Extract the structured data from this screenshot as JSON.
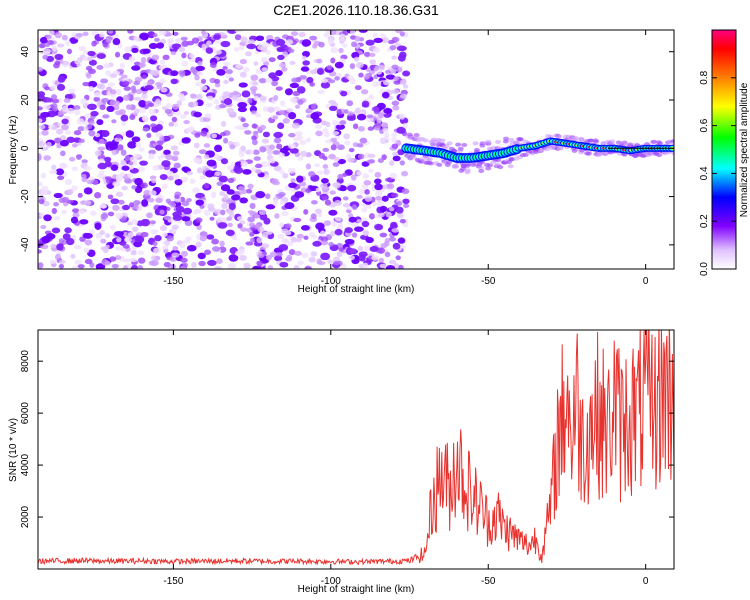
{
  "title": "C2E1.2026.110.18.36.G31",
  "chart_data": [
    {
      "type": "heatmap",
      "name": "spectrogram",
      "xlabel": "Height of straight line (km)",
      "ylabel": "Frequency (Hz)",
      "xlim": [
        -193,
        9
      ],
      "ylim": [
        -50,
        49
      ],
      "xticks": [
        -150,
        -100,
        -50,
        0
      ],
      "yticks": [
        -40,
        -20,
        0,
        20,
        40
      ],
      "noise_region_x": [
        -193,
        -76
      ],
      "signal_start_x": -76,
      "signal_ridge": {
        "x": [
          -76,
          -70,
          -65,
          -60,
          -55,
          -50,
          -45,
          -40,
          -35,
          -30,
          -25,
          -20,
          -15,
          -10,
          -5,
          0,
          5,
          9
        ],
        "y": [
          0,
          -1,
          -2,
          -4,
          -4,
          -3,
          -2,
          0,
          1,
          3,
          2,
          1,
          0,
          0,
          -1,
          0,
          0,
          0
        ]
      },
      "colorbar": {
        "label": "Normalized spectral amplitude",
        "range": [
          0,
          1
        ],
        "ticks": [
          "0.0",
          "0.2",
          "0.4",
          "0.6",
          "0.8"
        ],
        "colors": [
          "#ffffff",
          "#8000ff",
          "#0000ff",
          "#00ffff",
          "#00ff00",
          "#ffff00",
          "#ff8000",
          "#ff0000",
          "#ff0080"
        ]
      }
    },
    {
      "type": "line",
      "name": "snr",
      "xlabel": "Height of straight line (km)",
      "ylabel": "SNR (10 * v/v)",
      "color": "#e8322e",
      "xlim": [
        -193,
        9
      ],
      "ylim": [
        0,
        9200
      ],
      "xticks": [
        -150,
        -100,
        -50,
        0
      ],
      "yticks": [
        2000,
        4000,
        6000,
        8000
      ],
      "series": [
        {
          "name": "SNR",
          "x": [
            -193,
            -180,
            -170,
            -160,
            -150,
            -140,
            -130,
            -120,
            -110,
            -100,
            -90,
            -80,
            -75,
            -70,
            -68,
            -65,
            -62,
            -60,
            -58,
            -55,
            -52,
            -50,
            -47,
            -45,
            -42,
            -40,
            -37,
            -35,
            -33,
            -30,
            -28,
            -26,
            -25,
            -24,
            -22,
            -20,
            -18,
            -15,
            -12,
            -10,
            -8,
            -5,
            -3,
            0,
            3,
            6,
            9
          ],
          "y": [
            300,
            320,
            300,
            310,
            290,
            300,
            310,
            300,
            300,
            290,
            280,
            300,
            320,
            600,
            2400,
            3700,
            3000,
            4500,
            3500,
            2800,
            2300,
            1800,
            2100,
            1600,
            1300,
            1100,
            900,
            1200,
            500,
            2500,
            5000,
            6000,
            7500,
            5000,
            6500,
            4800,
            5500,
            6000,
            5200,
            6500,
            5400,
            6000,
            5800,
            6500,
            6200,
            7000,
            6500
          ]
        }
      ]
    }
  ]
}
